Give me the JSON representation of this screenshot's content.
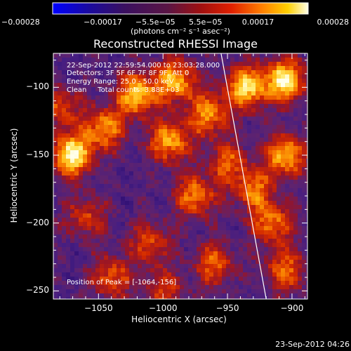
{
  "chart_data": {
    "type": "heatmap",
    "title": "Reconstructed RHESSI Image",
    "xlabel": "Heliocentric X (arcsec)",
    "ylabel": "Heliocentric Y (arcsec)",
    "xlim": [
      -1085,
      -888
    ],
    "ylim": [
      -256,
      -75
    ],
    "x_ticks": [
      -1050,
      -1000,
      -950,
      -900
    ],
    "x_tick_labels": [
      "−1050",
      "−1000",
      "−950",
      "−900"
    ],
    "y_ticks": [
      -100,
      -150,
      -200,
      -250
    ],
    "y_tick_labels": [
      "−100",
      "−150",
      "−200",
      "−250"
    ],
    "colorbar": {
      "min": -0.00028,
      "max": 0.00028,
      "tick_values": [
        -0.00028,
        -0.00017,
        -5.5e-05,
        5.5e-05,
        0.00017,
        0.00028
      ],
      "tick_labels": [
        "−0.00028",
        "−0.00017",
        "−5.5e−05",
        "5.5e−05",
        "0.00017",
        "0.00028"
      ],
      "units_label": "(photons cm⁻² s⁻¹ asec⁻²)"
    },
    "hot_spots": [
      {
        "x": -1070,
        "y": -150,
        "intensity": 1.0
      },
      {
        "x": -1045,
        "y": -130,
        "intensity": 0.7
      },
      {
        "x": -1020,
        "y": -105,
        "intensity": 0.85
      },
      {
        "x": -990,
        "y": -95,
        "intensity": 0.8
      },
      {
        "x": -995,
        "y": -140,
        "intensity": 0.75
      },
      {
        "x": -965,
        "y": -120,
        "intensity": 0.7
      },
      {
        "x": -975,
        "y": -180,
        "intensity": 0.65
      },
      {
        "x": -935,
        "y": -100,
        "intensity": 0.9
      },
      {
        "x": -905,
        "y": -95,
        "intensity": 0.95
      },
      {
        "x": -905,
        "y": -150,
        "intensity": 0.8
      },
      {
        "x": -930,
        "y": -175,
        "intensity": 0.6
      },
      {
        "x": -915,
        "y": -200,
        "intensity": 0.65
      },
      {
        "x": -905,
        "y": -235,
        "intensity": 0.6
      },
      {
        "x": -960,
        "y": -230,
        "intensity": 0.55
      },
      {
        "x": -1040,
        "y": -240,
        "intensity": 0.55
      },
      {
        "x": -1010,
        "y": -215,
        "intensity": 0.5
      },
      {
        "x": -1060,
        "y": -195,
        "intensity": 0.45
      },
      {
        "x": -1080,
        "y": -115,
        "intensity": 0.5
      },
      {
        "x": -950,
        "y": -155,
        "intensity": 0.5
      },
      {
        "x": -1000,
        "y": -250,
        "intensity": 0.45
      }
    ],
    "limb_line": [
      {
        "x": -955,
        "y": -75
      },
      {
        "x": -920,
        "y": -256
      }
    ],
    "annotations": {
      "time_range": "22-Sep-2012 22:59:54.000 to 23:03:28.000",
      "detectors": "Detectors: 3F 5F 6F 7F 8F 9F, Att 0",
      "energy_range": "Energy Range: 25.0 - 50.0 keV",
      "method_counts": "Clean     Total counts: 3.88E+03",
      "peak_position": "Position of Peak = [-1064,-156]"
    }
  },
  "colors": {
    "background": "#000000",
    "axes": "#ffffff",
    "limb": "#ffffff"
  },
  "footer_timestamp": "23-Sep-2012 04:26"
}
